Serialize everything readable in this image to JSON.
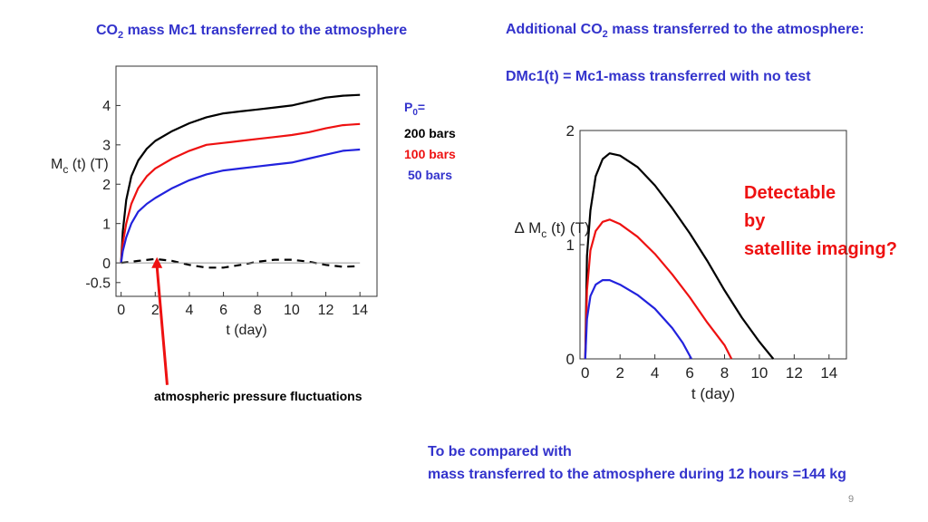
{
  "slide": {
    "left_title": {
      "pre": "CO",
      "sub": "2",
      "post": " mass Mc1 transferred to the atmosphere"
    },
    "right_title": {
      "pre": "Additional CO",
      "sub": "2",
      "post": " mass transferred to the atmosphere:"
    },
    "right_formula": "DMc1(t) = Mc1-mass transferred with no test",
    "legend": {
      "p0_pre": "P",
      "p0_sub": "0",
      "p0_post": "=",
      "l200": "200 bars",
      "l100": "100 bars",
      "l50": "50 bars"
    },
    "detectable": [
      "Detectable",
      "by",
      "satellite imaging?"
    ],
    "annotation": "atmospheric pressure fluctuations",
    "compare": [
      "To be compared with",
      "mass transferred to the atmosphere during 12 hours =144 kg"
    ],
    "page_number": "9"
  },
  "colors": {
    "black": "#000000",
    "red": "#ee1111",
    "blue": "#2222dd",
    "title_blue": "#3333cc",
    "arrow_red": "#ee1111"
  },
  "chart_data": [
    {
      "type": "line",
      "xlabel": "t (day)",
      "ylabel": {
        "pre": "M",
        "sub": "c",
        "post": " (t) (T)"
      },
      "xlim": [
        -0.3,
        15
      ],
      "ylim": [
        -0.85,
        5
      ],
      "xticks": [
        0,
        2,
        4,
        6,
        8,
        10,
        12,
        14
      ],
      "yticks": [
        -0.5,
        0,
        1,
        2,
        3,
        4
      ],
      "grid": false,
      "series": [
        {
          "color": "black",
          "dash": false,
          "points": [
            [
              0,
              0
            ],
            [
              0.1,
              0.8
            ],
            [
              0.3,
              1.6
            ],
            [
              0.6,
              2.2
            ],
            [
              1,
              2.6
            ],
            [
              1.5,
              2.9
            ],
            [
              2,
              3.1
            ],
            [
              3,
              3.35
            ],
            [
              4,
              3.55
            ],
            [
              5,
              3.7
            ],
            [
              6,
              3.8
            ],
            [
              7,
              3.85
            ],
            [
              8,
              3.9
            ],
            [
              9,
              3.95
            ],
            [
              10,
              4.0
            ],
            [
              11,
              4.1
            ],
            [
              12,
              4.2
            ],
            [
              13,
              4.25
            ],
            [
              14,
              4.27
            ]
          ]
        },
        {
          "color": "red",
          "dash": false,
          "points": [
            [
              0,
              0
            ],
            [
              0.1,
              0.5
            ],
            [
              0.3,
              1.0
            ],
            [
              0.6,
              1.5
            ],
            [
              1,
              1.9
            ],
            [
              1.5,
              2.2
            ],
            [
              2,
              2.4
            ],
            [
              3,
              2.65
            ],
            [
              4,
              2.85
            ],
            [
              5,
              3.0
            ],
            [
              6,
              3.05
            ],
            [
              7,
              3.1
            ],
            [
              8,
              3.15
            ],
            [
              9,
              3.2
            ],
            [
              10,
              3.25
            ],
            [
              11,
              3.32
            ],
            [
              12,
              3.42
            ],
            [
              13,
              3.5
            ],
            [
              14,
              3.53
            ]
          ]
        },
        {
          "color": "blue",
          "dash": false,
          "points": [
            [
              0,
              0
            ],
            [
              0.1,
              0.3
            ],
            [
              0.3,
              0.65
            ],
            [
              0.6,
              1.0
            ],
            [
              1,
              1.3
            ],
            [
              1.5,
              1.5
            ],
            [
              2,
              1.65
            ],
            [
              3,
              1.9
            ],
            [
              4,
              2.1
            ],
            [
              5,
              2.25
            ],
            [
              6,
              2.35
            ],
            [
              7,
              2.4
            ],
            [
              8,
              2.45
            ],
            [
              9,
              2.5
            ],
            [
              10,
              2.55
            ],
            [
              11,
              2.65
            ],
            [
              12,
              2.75
            ],
            [
              13,
              2.85
            ],
            [
              14,
              2.88
            ]
          ]
        },
        {
          "color": "black",
          "dash": true,
          "points": [
            [
              0,
              0
            ],
            [
              1,
              0.05
            ],
            [
              2,
              0.1
            ],
            [
              3,
              0.05
            ],
            [
              4,
              -0.05
            ],
            [
              5,
              -0.12
            ],
            [
              6,
              -0.12
            ],
            [
              7,
              -0.05
            ],
            [
              8,
              0.03
            ],
            [
              9,
              0.08
            ],
            [
              10,
              0.08
            ],
            [
              11,
              0.03
            ],
            [
              12,
              -0.05
            ],
            [
              13,
              -0.1
            ],
            [
              14,
              -0.08
            ]
          ]
        }
      ],
      "arrow": {
        "from": [
          2.7,
          -3.1
        ],
        "to": [
          2.1,
          0.1
        ]
      }
    },
    {
      "type": "line",
      "xlabel": "t (day)",
      "ylabel": {
        "pre": "∆ M",
        "sub": "c",
        "post": " (t) (T)"
      },
      "xlim": [
        -0.3,
        15
      ],
      "ylim": [
        0,
        2
      ],
      "xticks": [
        0,
        2,
        4,
        6,
        8,
        10,
        12,
        14
      ],
      "yticks": [
        0,
        1,
        2
      ],
      "grid": false,
      "series": [
        {
          "color": "black",
          "points": [
            [
              0,
              0
            ],
            [
              0.1,
              0.9
            ],
            [
              0.3,
              1.3
            ],
            [
              0.6,
              1.6
            ],
            [
              1,
              1.75
            ],
            [
              1.4,
              1.8
            ],
            [
              2,
              1.78
            ],
            [
              3,
              1.68
            ],
            [
              4,
              1.52
            ],
            [
              5,
              1.32
            ],
            [
              6,
              1.1
            ],
            [
              7,
              0.86
            ],
            [
              8,
              0.6
            ],
            [
              9,
              0.36
            ],
            [
              10,
              0.15
            ],
            [
              10.8,
              0
            ]
          ]
        },
        {
          "color": "red",
          "points": [
            [
              0,
              0
            ],
            [
              0.1,
              0.6
            ],
            [
              0.3,
              0.95
            ],
            [
              0.6,
              1.12
            ],
            [
              1,
              1.2
            ],
            [
              1.4,
              1.22
            ],
            [
              2,
              1.18
            ],
            [
              3,
              1.07
            ],
            [
              4,
              0.92
            ],
            [
              5,
              0.74
            ],
            [
              6,
              0.54
            ],
            [
              7,
              0.32
            ],
            [
              8,
              0.12
            ],
            [
              8.4,
              0
            ]
          ]
        },
        {
          "color": "blue",
          "points": [
            [
              0,
              0
            ],
            [
              0.1,
              0.35
            ],
            [
              0.3,
              0.55
            ],
            [
              0.6,
              0.65
            ],
            [
              1,
              0.69
            ],
            [
              1.4,
              0.69
            ],
            [
              2,
              0.65
            ],
            [
              3,
              0.56
            ],
            [
              4,
              0.44
            ],
            [
              5,
              0.27
            ],
            [
              5.6,
              0.14
            ],
            [
              6.1,
              0
            ]
          ]
        }
      ]
    }
  ]
}
